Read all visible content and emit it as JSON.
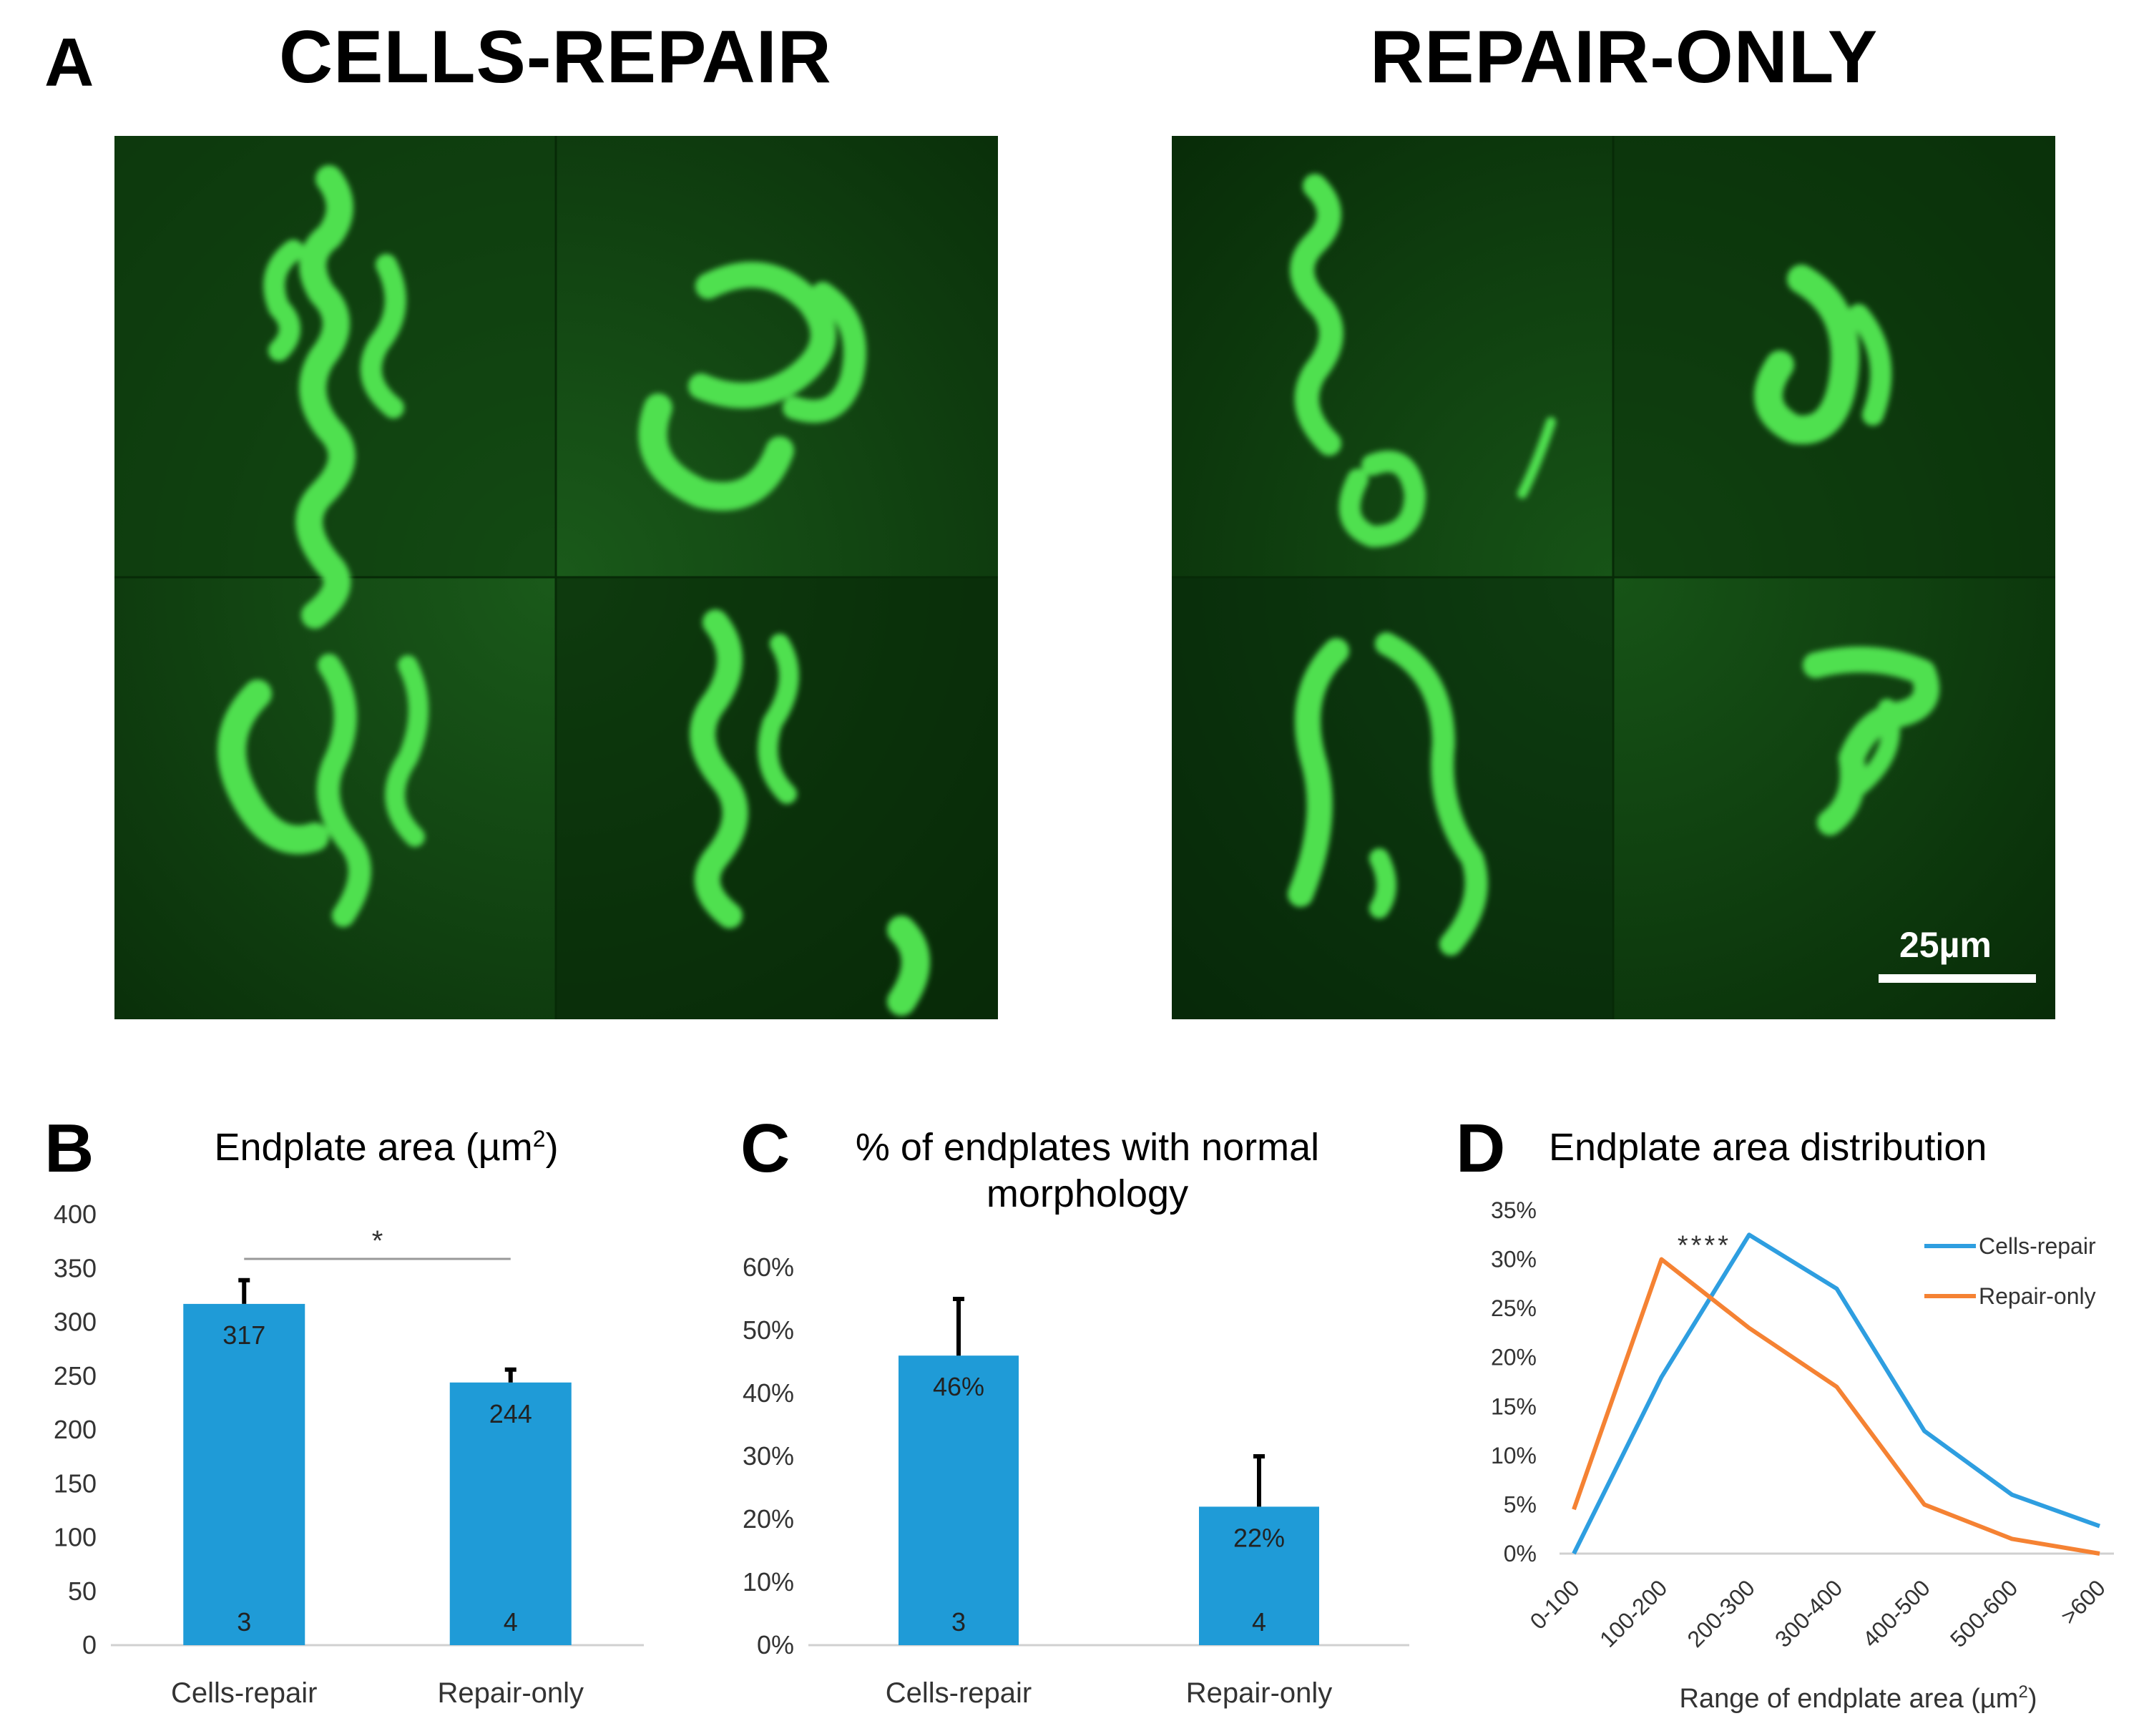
{
  "panels": {
    "a": {
      "letter": "A",
      "groups": [
        {
          "title": "CELLS-REPAIR"
        },
        {
          "title": "REPAIR-ONLY"
        }
      ],
      "scale_bar": {
        "label": "25µm"
      },
      "colors": {
        "background": "#0c3a0c",
        "signal": "#4fe04f"
      }
    },
    "b": {
      "letter": "B",
      "title_text": "Endplate area (µm",
      "title_sup": "2",
      "title_close": ")"
    },
    "c": {
      "letter": "C",
      "title_line1": "% of endplates with normal",
      "title_line2": "morphology"
    },
    "d": {
      "letter": "D",
      "title": "Endplate area distribution"
    }
  },
  "chart_data": [
    {
      "id": "B",
      "type": "bar",
      "categories": [
        "Cells-repair",
        "Repair-only"
      ],
      "values": [
        317,
        244
      ],
      "value_labels": [
        "317",
        "244"
      ],
      "n_labels": [
        "3",
        "4"
      ],
      "error_upper": [
        22,
        12
      ],
      "ylim": [
        0,
        400
      ],
      "yticks": [
        0,
        50,
        100,
        150,
        200,
        250,
        300,
        350,
        400
      ],
      "ytick_labels": [
        "0",
        "50",
        "100",
        "150",
        "200",
        "250",
        "300",
        "350",
        "400"
      ],
      "significance": "*",
      "bar_color": "#1f9bd7"
    },
    {
      "id": "C",
      "type": "bar",
      "categories": [
        "Cells-repair",
        "Repair-only"
      ],
      "values": [
        46,
        22
      ],
      "value_labels": [
        "46%",
        "22%"
      ],
      "n_labels": [
        "3",
        "4"
      ],
      "error_upper": [
        9,
        8
      ],
      "ylim": [
        0,
        60
      ],
      "yticks": [
        0,
        10,
        20,
        30,
        40,
        50,
        60
      ],
      "ytick_labels": [
        "0%",
        "10%",
        "20%",
        "30%",
        "40%",
        "50%",
        "60%"
      ],
      "bar_color": "#1f9bd7"
    },
    {
      "id": "D",
      "type": "line",
      "categories": [
        "0-100",
        "100-200",
        "200-300",
        "300-400",
        "400-500",
        "500-600",
        ">600"
      ],
      "series": [
        {
          "name": "Cells-repair",
          "values": [
            0,
            18,
            32.5,
            27,
            12.5,
            6,
            2.8
          ],
          "color": "#2e9ee0"
        },
        {
          "name": "Repair-only",
          "values": [
            4.5,
            30,
            23,
            17,
            5,
            1.5,
            0
          ],
          "color": "#f58233"
        }
      ],
      "ylim": [
        0,
        35
      ],
      "yticks": [
        0,
        5,
        10,
        15,
        20,
        25,
        30,
        35
      ],
      "ytick_labels": [
        "0%",
        "5%",
        "10%",
        "15%",
        "20%",
        "25%",
        "30%",
        "35%"
      ],
      "xlabel_text": "Range of endplate area (µm",
      "xlabel_sup": "2",
      "xlabel_close": ")",
      "significance": "****",
      "legend": "top-right"
    }
  ]
}
